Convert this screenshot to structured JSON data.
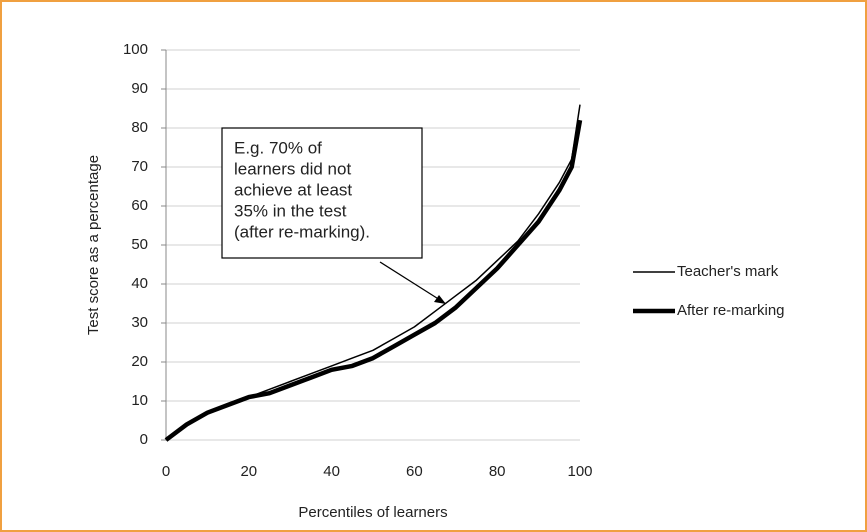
{
  "chart_data": {
    "type": "line",
    "xlabel": "Percentiles of learners",
    "ylabel": "Test score as a percentage",
    "x": [
      0,
      5,
      10,
      15,
      20,
      25,
      30,
      35,
      40,
      45,
      50,
      55,
      60,
      65,
      70,
      75,
      80,
      85,
      90,
      95,
      98,
      100
    ],
    "series": [
      {
        "name": "Teacher's mark",
        "color": "#000000",
        "line_style": "thin",
        "values": [
          0,
          4,
          7,
          9,
          11,
          13,
          15,
          17,
          19,
          21,
          23,
          26,
          29,
          33,
          37,
          41,
          46,
          51,
          58,
          66,
          72,
          86
        ]
      },
      {
        "name": "After re-marking",
        "color": "#000000",
        "line_style": "thick",
        "values": [
          0,
          4,
          7,
          9,
          11,
          12,
          14,
          16,
          18,
          19,
          21,
          24,
          27,
          30,
          34,
          39,
          44,
          50,
          56,
          64,
          70,
          82
        ]
      }
    ],
    "xlim": [
      0,
      100
    ],
    "xticks": [
      0,
      20,
      40,
      60,
      80,
      100
    ],
    "ylim": [
      0,
      100
    ],
    "yticks": [
      0,
      10,
      20,
      30,
      40,
      50,
      60,
      70,
      80,
      90,
      100
    ],
    "grid": true,
    "legend": "right",
    "annotation": [
      "E.g. 70% of",
      "learners did not",
      "achieve at least",
      "35% in the test",
      "(after re-marking)."
    ]
  }
}
